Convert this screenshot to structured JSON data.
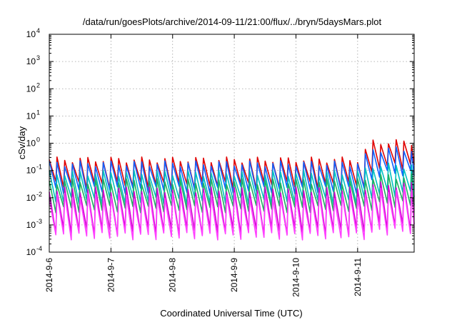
{
  "chart_data": {
    "type": "line",
    "title": "/data/run/goesPlots/archive/2014-09-11/21:00/flux/../bryn/5daysMars.plot",
    "xlabel": "Coordinated Universal Time (UTC)",
    "ylabel": "cSv/day",
    "xlim": [
      "2014-09-06T00:00",
      "2014-09-11T22:00"
    ],
    "x_ticks": [
      "2014-9-6",
      "2014-9-7",
      "2014-9-8",
      "2014-9-9",
      "2014-9-10",
      "2014-9-11"
    ],
    "y_scale": "log",
    "ylim": [
      0.0001,
      10000
    ],
    "y_ticks": [
      {
        "base": "10",
        "exp": "-4"
      },
      {
        "base": "10",
        "exp": "-3"
      },
      {
        "base": "10",
        "exp": "-2"
      },
      {
        "base": "10",
        "exp": "-1"
      },
      {
        "base": "10",
        "exp": "0"
      },
      {
        "base": "10",
        "exp": "1"
      },
      {
        "base": "10",
        "exp": "2"
      },
      {
        "base": "10",
        "exp": "3"
      },
      {
        "base": "10",
        "exp": "4"
      }
    ],
    "grid": true,
    "legend": "none",
    "cycle_hours": 3,
    "anomaly_start": "2014-09-11T00:00",
    "series": [
      {
        "color": "#e00000",
        "peak": 0.25,
        "trough": 0.03,
        "peak_late": 1.1,
        "trough_late": 0.15
      },
      {
        "color": "#1060ff",
        "peak": 0.18,
        "trough": 0.02,
        "peak_late": 0.6,
        "trough_late": 0.08
      },
      {
        "color": "#00c0c0",
        "peak": 0.08,
        "trough": 0.008,
        "peak_late": 0.15,
        "trough_late": 0.015
      },
      {
        "color": "#20b060",
        "peak": 0.04,
        "trough": 0.004,
        "peak_late": 0.06,
        "trough_late": 0.006
      },
      {
        "color": "#d000d0",
        "peak": 0.02,
        "trough": 0.0006,
        "peak_late": 0.03,
        "trough_late": 0.0009
      },
      {
        "color": "#ff40ff",
        "peak": 0.012,
        "trough": 0.0004,
        "peak_late": 0.02,
        "trough_late": 0.0006
      }
    ]
  }
}
